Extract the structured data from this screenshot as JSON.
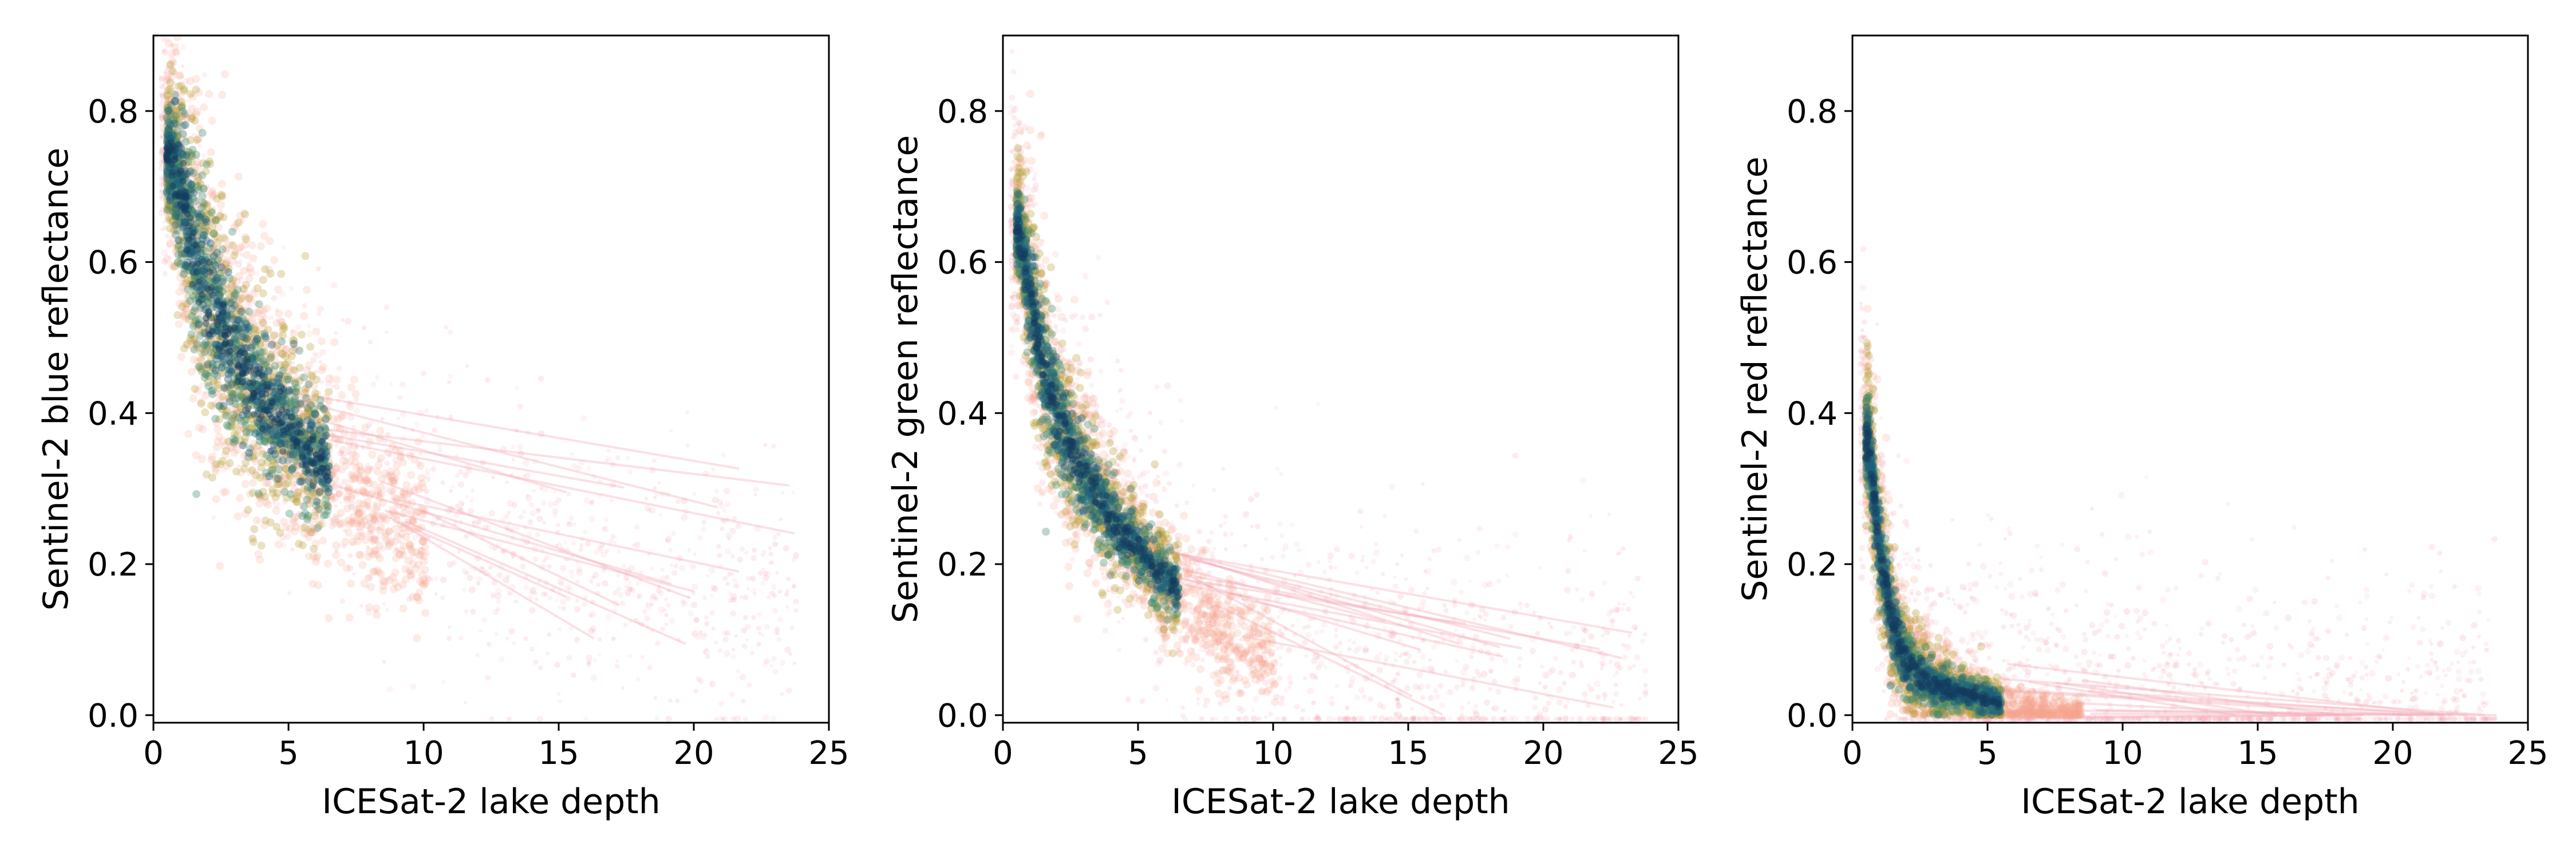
{
  "chart_data": [
    {
      "type": "scatter",
      "xlabel": "ICESat-2 lake depth",
      "ylabel": "Sentinel-2 blue reflectance",
      "xlim": [
        0,
        25
      ],
      "ylim": [
        -0.01,
        0.9
      ],
      "xticks": [
        0,
        5,
        10,
        15,
        20,
        25
      ],
      "yticks": [
        0.0,
        0.2,
        0.4,
        0.6,
        0.8
      ],
      "xtick_labels": [
        "0",
        "5",
        "10",
        "15",
        "20",
        "25"
      ],
      "ytick_labels": [
        "0.0",
        "0.2",
        "0.4",
        "0.6",
        "0.8"
      ],
      "grid": false,
      "density": {
        "depth": [
          0.6,
          1,
          1.5,
          2,
          3,
          4,
          5,
          6,
          8,
          10,
          15,
          20,
          24
        ],
        "core_reflectance": [
          0.74,
          0.7,
          0.62,
          0.56,
          0.48,
          0.42,
          0.38,
          0.34,
          0.28,
          0.24,
          0.18,
          0.14,
          0.12
        ],
        "spread": [
          0.06,
          0.1,
          0.12,
          0.12,
          0.1,
          0.09,
          0.08,
          0.07,
          0.06,
          0.05,
          0.05,
          0.04,
          0.04
        ],
        "dense_core_max_depth": 6
      }
    },
    {
      "type": "scatter",
      "xlabel": "ICESat-2 lake depth",
      "ylabel": "Sentinel-2 green reflectance",
      "xlim": [
        0,
        25
      ],
      "ylim": [
        -0.01,
        0.9
      ],
      "xticks": [
        0,
        5,
        10,
        15,
        20,
        25
      ],
      "yticks": [
        0.0,
        0.2,
        0.4,
        0.6,
        0.8
      ],
      "xtick_labels": [
        "0",
        "5",
        "10",
        "15",
        "20",
        "25"
      ],
      "ytick_labels": [
        "0.0",
        "0.2",
        "0.4",
        "0.6",
        "0.8"
      ],
      "grid": false,
      "density": {
        "depth": [
          0.6,
          1,
          1.5,
          2,
          3,
          4,
          5,
          6,
          8,
          10,
          15,
          20,
          24
        ],
        "core_reflectance": [
          0.64,
          0.56,
          0.46,
          0.4,
          0.32,
          0.26,
          0.22,
          0.18,
          0.12,
          0.08,
          0.05,
          0.03,
          0.02
        ],
        "spread": [
          0.05,
          0.08,
          0.08,
          0.07,
          0.06,
          0.05,
          0.04,
          0.04,
          0.04,
          0.03,
          0.03,
          0.03,
          0.03
        ],
        "dense_core_max_depth": 6
      }
    },
    {
      "type": "scatter",
      "xlabel": "ICESat-2 lake depth",
      "ylabel": "Sentinel-2 red reflectance",
      "xlim": [
        0,
        25
      ],
      "ylim": [
        -0.01,
        0.9
      ],
      "xticks": [
        0,
        5,
        10,
        15,
        20,
        25
      ],
      "yticks": [
        0.0,
        0.2,
        0.4,
        0.6,
        0.8
      ],
      "xtick_labels": [
        "0",
        "5",
        "10",
        "15",
        "20",
        "25"
      ],
      "ytick_labels": [
        "0.0",
        "0.2",
        "0.4",
        "0.6",
        "0.8"
      ],
      "grid": false,
      "density": {
        "depth": [
          0.6,
          1,
          1.5,
          2,
          3,
          4,
          5,
          6,
          8,
          10,
          15,
          20,
          24
        ],
        "core_reflectance": [
          0.36,
          0.22,
          0.12,
          0.07,
          0.04,
          0.03,
          0.02,
          0.01,
          0.005,
          0.003,
          0.002,
          0.001,
          0.001
        ],
        "spread": [
          0.06,
          0.06,
          0.05,
          0.04,
          0.03,
          0.02,
          0.02,
          0.015,
          0.01,
          0.01,
          0.01,
          0.01,
          0.01
        ],
        "dense_core_max_depth": 5
      }
    }
  ]
}
